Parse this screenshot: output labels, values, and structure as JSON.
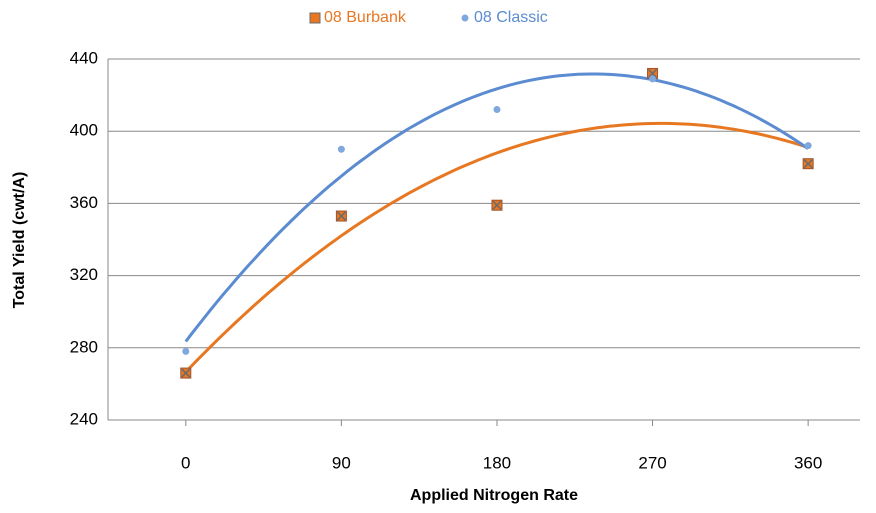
{
  "chart_data": {
    "type": "scatter",
    "x_label": "Applied Nitrogen Rate",
    "y_label": "Total Yield (cwt/A)",
    "x": [
      0,
      90,
      180,
      270,
      360
    ],
    "series": [
      {
        "name": "08 Burbank",
        "color": "#e87722",
        "values": [
          266,
          353,
          359,
          432,
          382
        ]
      },
      {
        "name": "08 Classic",
        "color": "#5b8bd0",
        "values": [
          278,
          390,
          412,
          429,
          392
        ]
      }
    ],
    "xlim": [
      -45,
      390
    ],
    "xticks": [
      0,
      90,
      180,
      270,
      360
    ],
    "ylim": [
      240,
      440
    ],
    "yticks": [
      240,
      280,
      320,
      360,
      400,
      440
    ],
    "grid": true,
    "legend": "top",
    "trendline": "poly2"
  }
}
